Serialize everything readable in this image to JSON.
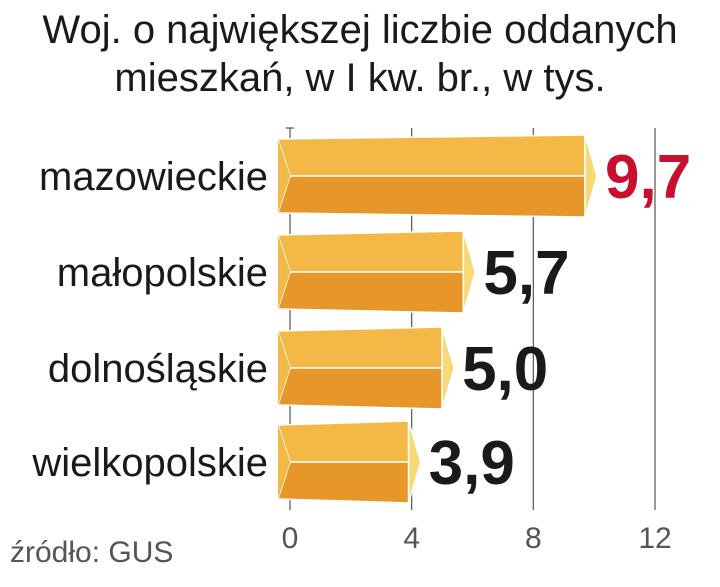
{
  "chart_data": {
    "type": "bar",
    "orientation": "horizontal",
    "title_lines": [
      "Woj. o największej liczbie oddanych",
      "mieszkań, w I kw. br., w tys."
    ],
    "categories": [
      "mazowieckie",
      "małopolskie",
      "dolnośląskie",
      "wielkopolskie"
    ],
    "values": [
      9.7,
      5.7,
      5.0,
      3.9
    ],
    "value_labels": [
      "9,7",
      "5,7",
      "5,0",
      "3,9"
    ],
    "xlim": [
      0,
      12
    ],
    "xticks": [
      0,
      4,
      8,
      12
    ],
    "xtick_labels": [
      "0",
      "4",
      "8",
      "12"
    ],
    "grid": true,
    "source": "źródło: GUS",
    "colors": {
      "bar_top": "#f3b846",
      "bar_bottom": "#e7972a",
      "bar_tip": "#f8d978",
      "highlight_label": "#c8102e",
      "label": "#1a1a1a",
      "grid": "#555555"
    }
  }
}
